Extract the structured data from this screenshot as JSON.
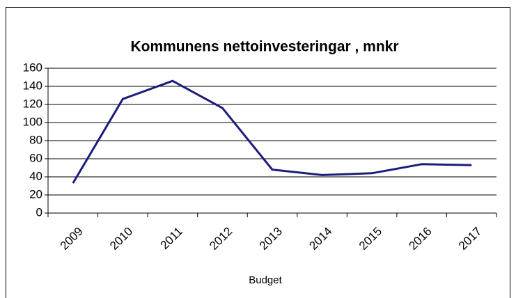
{
  "chart_data": {
    "type": "line",
    "title": "Kommunens nettoinvesteringar , mnkr",
    "x_label": "Budget",
    "categories": [
      "2009",
      "2010",
      "2011",
      "2012",
      "2013",
      "2014",
      "2015",
      "2016",
      "2017"
    ],
    "series": [
      {
        "name": "Nettoinvesteringar",
        "color": "#1c1c7c",
        "values": [
          33,
          126,
          146,
          116,
          48,
          42,
          44,
          54,
          53
        ]
      }
    ],
    "ylim": [
      0,
      160
    ],
    "yticks": [
      0,
      20,
      40,
      60,
      80,
      100,
      120,
      140,
      160
    ],
    "grid": true
  }
}
